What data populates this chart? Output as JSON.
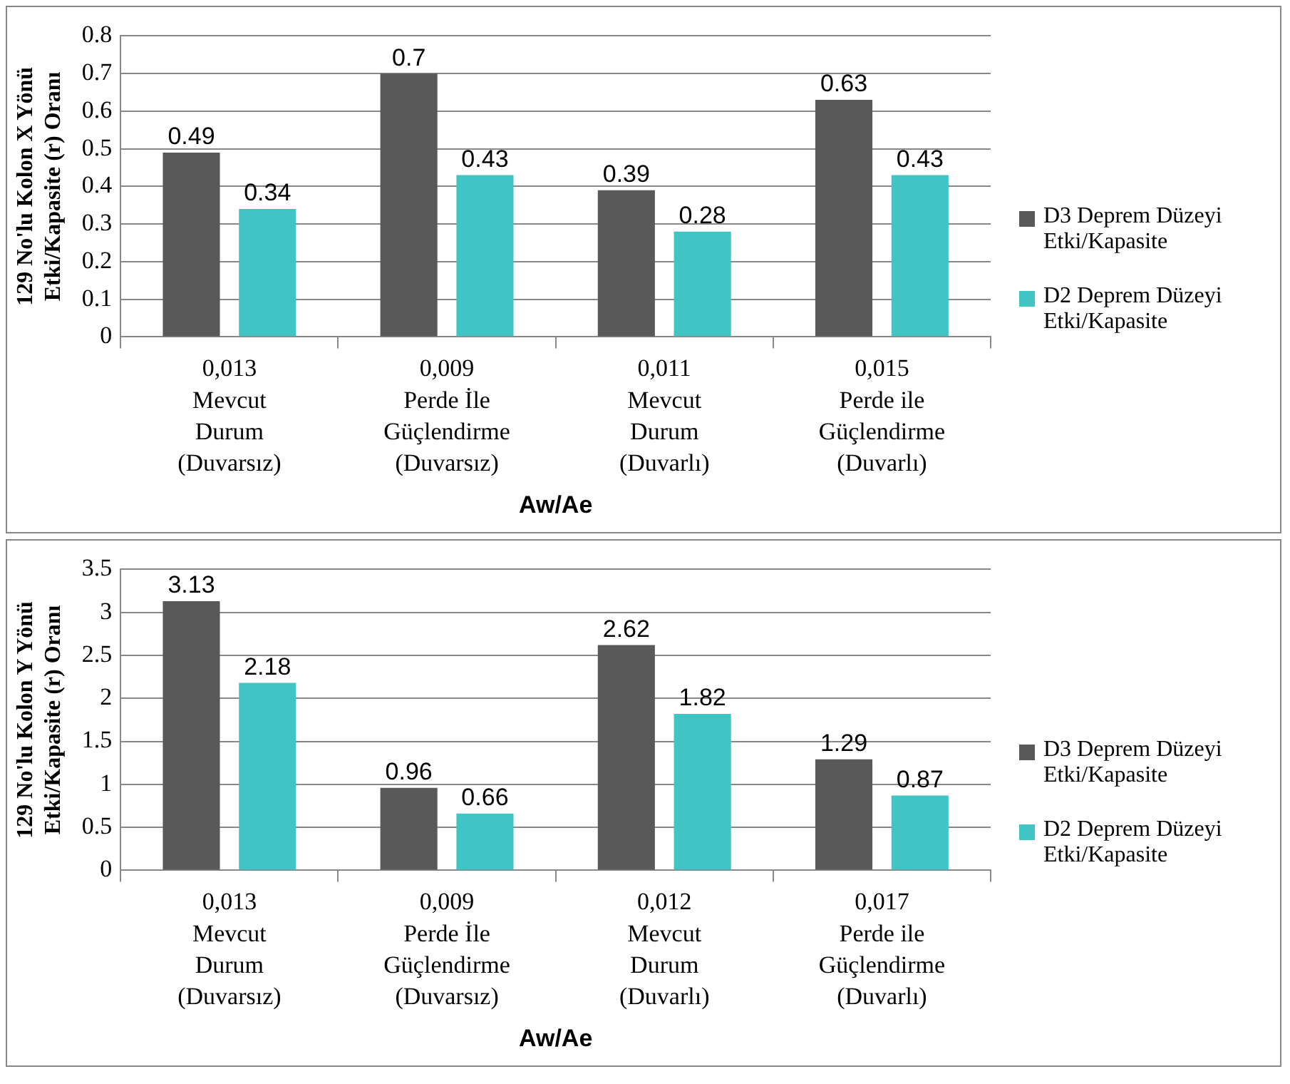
{
  "chart_data": [
    {
      "type": "bar",
      "ylabel": "129 No'lu Kolon X Yönü\nEtki/Kapasite (r) Oranı",
      "xlabel": "Aw/Ae",
      "categories": [
        "0,013\nMevcut\nDurum\n(Duvarsız)",
        "0,009\nPerde İle\nGüçlendirme\n(Duvarsız)",
        "0,011\nMevcut\nDurum\n(Duvarlı)",
        "0,015\nPerde ile\nGüçlendirme\n(Duvarlı)"
      ],
      "series": [
        {
          "name": "D3 Deprem Düzeyi Etki/Kapasite",
          "color": "#595959",
          "values": [
            0.49,
            0.7,
            0.39,
            0.63
          ]
        },
        {
          "name": "D2 Deprem Düzeyi Etki/Kapasite",
          "color": "#40c4c4",
          "values": [
            0.34,
            0.43,
            0.28,
            0.43
          ]
        }
      ],
      "ylim": [
        0,
        0.8
      ],
      "yticks": [
        0,
        0.1,
        0.2,
        0.3,
        0.4,
        0.5,
        0.6,
        0.7,
        0.8
      ],
      "grid": "y",
      "legend": "right",
      "data_labels": true
    },
    {
      "type": "bar",
      "ylabel": "129 No'lu Kolon Y Yönü\nEtki/Kapasite (r) Oranı",
      "xlabel": "Aw/Ae",
      "categories": [
        "0,013\nMevcut\nDurum\n(Duvarsız)",
        "0,009\nPerde İle\nGüçlendirme\n(Duvarsız)",
        "0,012\nMevcut\nDurum\n(Duvarlı)",
        "0,017\nPerde ile\nGüçlendirme\n(Duvarlı)"
      ],
      "series": [
        {
          "name": "D3 Deprem Düzeyi Etki/Kapasite",
          "color": "#595959",
          "values": [
            3.13,
            0.96,
            2.62,
            1.29
          ]
        },
        {
          "name": "D2 Deprem Düzeyi Etki/Kapasite",
          "color": "#40c4c4",
          "values": [
            2.18,
            0.66,
            1.82,
            0.87
          ]
        }
      ],
      "ylim": [
        0,
        3.5
      ],
      "yticks": [
        0,
        0.5,
        1,
        1.5,
        2,
        2.5,
        3,
        3.5
      ],
      "grid": "y",
      "legend": "right",
      "data_labels": true
    }
  ]
}
